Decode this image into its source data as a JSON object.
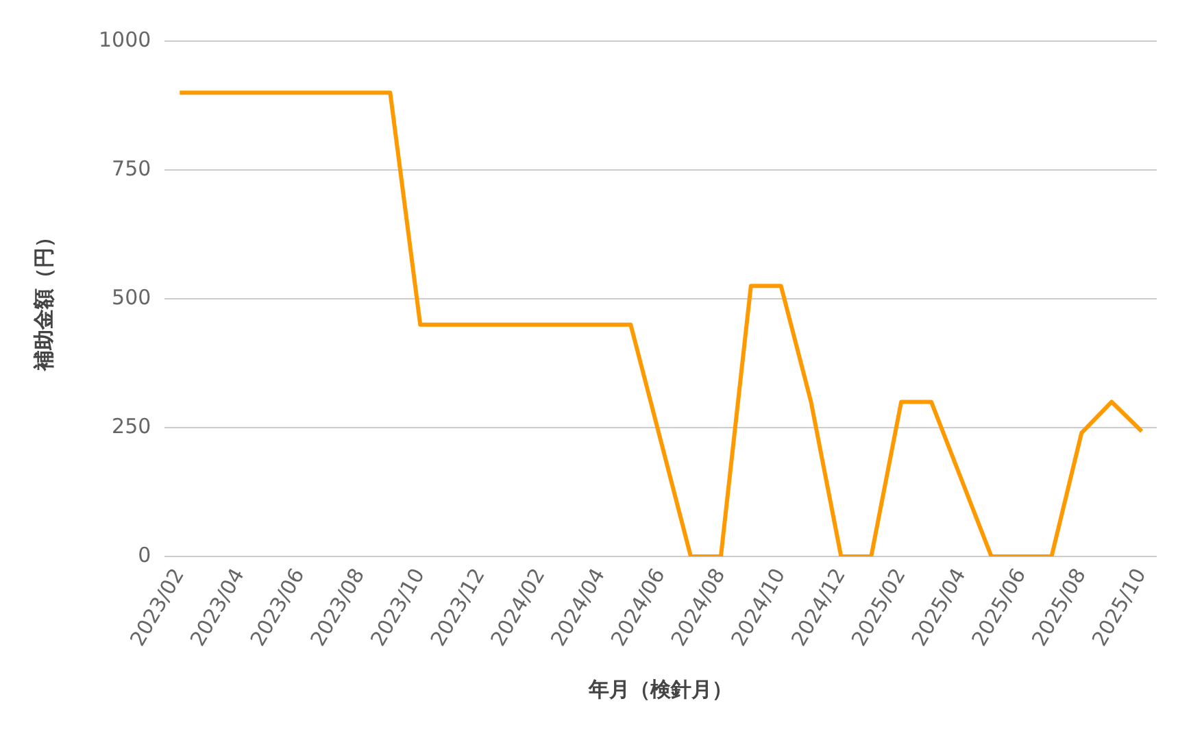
{
  "chart_data": {
    "type": "line",
    "xlabel": "年月（検針月）",
    "ylabel": "補助金額（円）",
    "categories": [
      "2023/02",
      null,
      "2023/04",
      null,
      "2023/06",
      null,
      "2023/08",
      null,
      "2023/10",
      null,
      "2023/12",
      null,
      "2024/02",
      null,
      "2024/04",
      null,
      "2024/06",
      null,
      "2024/08",
      null,
      "2024/10",
      null,
      "2024/12",
      null,
      "2025/02",
      null,
      "2025/04",
      null,
      "2025/06",
      null,
      "2025/08",
      null,
      "2025/10"
    ],
    "series": [
      {
        "color": "#ff9900",
        "values": [
          900,
          900,
          900,
          900,
          900,
          900,
          900,
          900,
          450,
          450,
          450,
          450,
          450,
          450,
          450,
          450,
          225,
          0,
          0,
          525,
          525,
          300,
          0,
          0,
          300,
          300,
          150,
          0,
          0,
          0,
          240,
          300,
          243
        ]
      }
    ],
    "ylim": [
      0,
      1000
    ],
    "yticks": [
      0,
      250,
      500,
      750,
      1000
    ],
    "grid": "y",
    "legend": false,
    "marker": "none",
    "line_style": "solid"
  }
}
